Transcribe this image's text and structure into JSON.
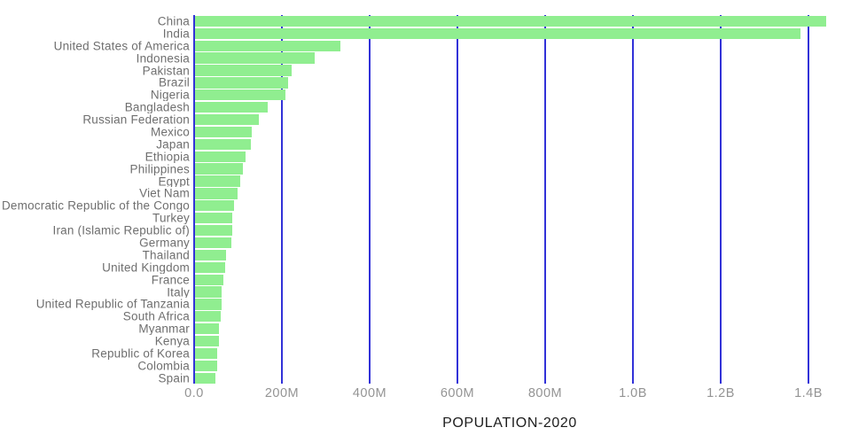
{
  "chart_data": {
    "type": "bar",
    "orientation": "horizontal",
    "title": "",
    "xlabel": "POPULATION-2020",
    "ylabel": "",
    "x_tick_labels": [
      "0.0",
      "200M",
      "400M",
      "600M",
      "800M",
      "1.0B",
      "1.2B",
      "1.4B"
    ],
    "x_tick_values_millions": [
      0,
      200,
      400,
      600,
      800,
      1000,
      1200,
      1400
    ],
    "xlim_millions": [
      0,
      1497
    ],
    "grid": "vertical lines only",
    "legend": "none",
    "categories": [
      "China",
      "India",
      "United States of America",
      "Indonesia",
      "Pakistan",
      "Brazil",
      "Nigeria",
      "Bangladesh",
      "Russian Federation",
      "Mexico",
      "Japan",
      "Ethiopia",
      "Philippines",
      "Egypt",
      "Viet Nam",
      "Democratic Republic of the Congo",
      "Turkey",
      "Iran (Islamic Republic of)",
      "Germany",
      "Thailand",
      "United Kingdom",
      "France",
      "Italy",
      "United Republic of Tanzania",
      "South Africa",
      "Myanmar",
      "Kenya",
      "Republic of Korea",
      "Colombia",
      "Spain"
    ],
    "values_millions": [
      1439.3,
      1380.0,
      331.0,
      273.5,
      220.9,
      212.6,
      206.1,
      164.7,
      145.9,
      128.9,
      126.5,
      115.0,
      109.6,
      102.3,
      97.3,
      89.6,
      84.3,
      84.0,
      83.8,
      69.8,
      67.9,
      65.3,
      60.5,
      59.7,
      59.3,
      54.4,
      53.8,
      51.3,
      50.9,
      46.8
    ],
    "colors": {
      "bar": "#90ee90",
      "gridline": "#3232d8",
      "category_label": "#6f6f6f",
      "tick_label": "#949494",
      "axis_title": "#1d1d1d",
      "background": "#ffffff"
    }
  }
}
